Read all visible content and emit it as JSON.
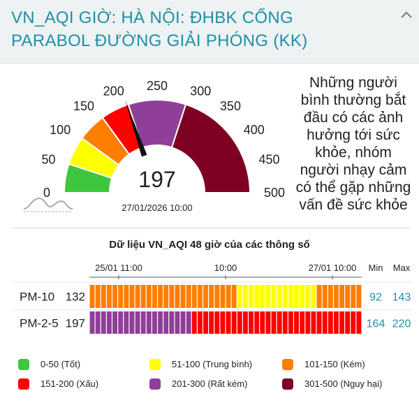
{
  "header": {
    "title": "VN_AQI GIỜ: HÀ NỘI: ĐHBK CỔNG PARABOL ĐƯỜNG GIẢI PHÓNG (KK)",
    "collapse_icon": "chevron-up-icon"
  },
  "gauge": {
    "value": 197,
    "value_text": "197",
    "min": 0,
    "max": 500,
    "timestamp": "27/01/2026 10:00",
    "ticks": [
      "0",
      "50",
      "100",
      "150",
      "200",
      "250",
      "300",
      "350",
      "400",
      "450",
      "500"
    ],
    "bands": [
      {
        "from": 0,
        "to": 50,
        "color": "#3ec63e"
      },
      {
        "from": 50,
        "to": 100,
        "color": "#ffff00"
      },
      {
        "from": 100,
        "to": 150,
        "color": "#ff7e00"
      },
      {
        "from": 150,
        "to": 200,
        "color": "#ff0000"
      },
      {
        "from": 200,
        "to": 300,
        "color": "#8f3f97"
      },
      {
        "from": 300,
        "to": 500,
        "color": "#7e0023"
      }
    ],
    "needle_color": "#111111",
    "logo_icon": "mountain-wave-icon"
  },
  "description": "Những người bình thường bắt đầu có các ảnh hưởng tới sức khỏe, nhóm người nhạy cảm có thể gặp những vấn đề sức khỏe",
  "chart_data": {
    "type": "heatmap",
    "title": "Dữ liệu VN_AQI 48 giờ của các thông số",
    "x_tick_labels": [
      "25/01 11:00",
      "10:00",
      "27/01 10:00"
    ],
    "min_header": "Min",
    "max_header": "Max",
    "series": [
      {
        "name": "PM-10",
        "current": "132",
        "min": "92",
        "max": "143",
        "values": [
          135,
          138,
          140,
          141,
          139,
          137,
          136,
          138,
          140,
          142,
          141,
          139,
          137,
          135,
          133,
          130,
          128,
          126,
          124,
          122,
          120,
          118,
          115,
          112,
          108,
          104,
          98,
          95,
          93,
          92,
          94,
          96,
          98,
          97,
          95,
          93,
          96,
          99,
          98,
          94,
          104,
          110,
          116,
          120,
          124,
          128,
          130,
          132
        ]
      },
      {
        "name": "PM-2-5",
        "current": "197",
        "min": "164",
        "max": "220",
        "values": [
          210,
          212,
          214,
          215,
          216,
          218,
          219,
          220,
          218,
          216,
          214,
          212,
          210,
          208,
          206,
          204,
          202,
          201,
          200,
          199,
          198,
          197,
          196,
          195,
          194,
          193,
          192,
          190,
          188,
          186,
          184,
          182,
          180,
          178,
          176,
          174,
          172,
          170,
          168,
          166,
          165,
          164,
          168,
          172,
          178,
          185,
          192,
          197
        ]
      }
    ],
    "color_scale": [
      {
        "max": 50,
        "color": "#3ec63e"
      },
      {
        "max": 100,
        "color": "#ffff00"
      },
      {
        "max": 150,
        "color": "#ff7e00"
      },
      {
        "max": 200,
        "color": "#ff0000"
      },
      {
        "max": 300,
        "color": "#8f3f97"
      },
      {
        "max": 500,
        "color": "#7e0023"
      }
    ]
  },
  "legend": [
    {
      "label": "0-50 (Tốt)",
      "color": "#3ec63e"
    },
    {
      "label": "51-100 (Trung bình)",
      "color": "#ffff00"
    },
    {
      "label": "101-150 (Kém)",
      "color": "#ff7e00"
    },
    {
      "label": "151-200 (Xấu)",
      "color": "#ff0000"
    },
    {
      "label": "201-300 (Rất kém)",
      "color": "#8f3f97"
    },
    {
      "label": "301-500 (Nguy hại)",
      "color": "#7e0023"
    }
  ]
}
